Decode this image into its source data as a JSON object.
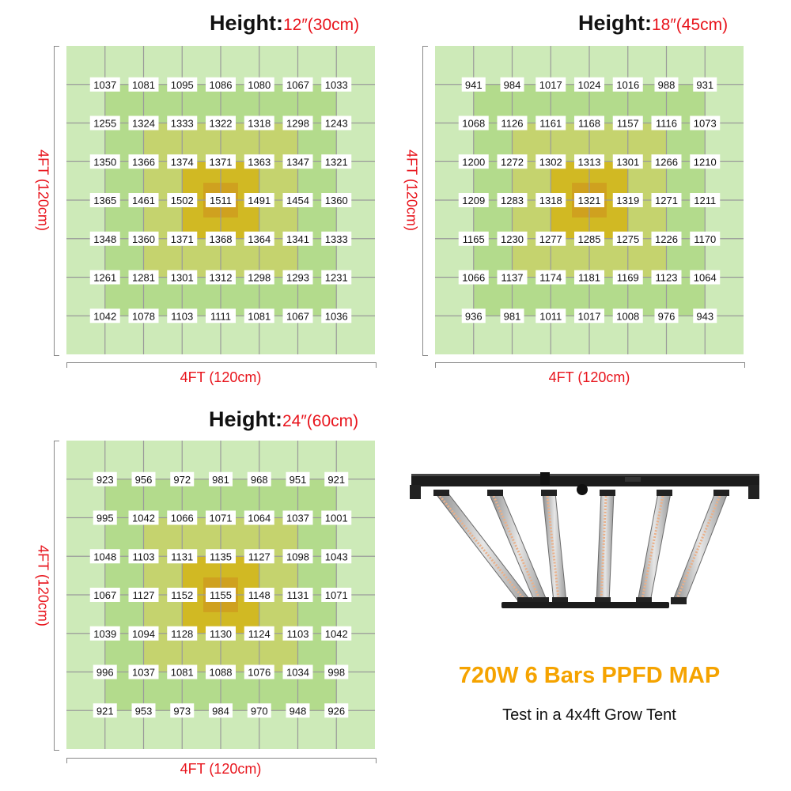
{
  "chart_data": [
    {
      "type": "heatmap",
      "title_label": "Height:",
      "title_value": "12″(30cm)",
      "xlabel": "4FT (120cm)",
      "ylabel": "4FT (120cm)",
      "rows": [
        [
          1037,
          1081,
          1095,
          1086,
          1080,
          1067,
          1033
        ],
        [
          1255,
          1324,
          1333,
          1322,
          1318,
          1298,
          1243
        ],
        [
          1350,
          1366,
          1374,
          1371,
          1363,
          1347,
          1321
        ],
        [
          1365,
          1461,
          1502,
          1511,
          1491,
          1454,
          1360
        ],
        [
          1348,
          1360,
          1371,
          1368,
          1364,
          1341,
          1333
        ],
        [
          1261,
          1281,
          1301,
          1312,
          1298,
          1293,
          1231
        ],
        [
          1042,
          1078,
          1103,
          1111,
          1081,
          1067,
          1036
        ]
      ]
    },
    {
      "type": "heatmap",
      "title_label": "Height:",
      "title_value": "18″(45cm)",
      "xlabel": "4FT (120cm)",
      "ylabel": "4FT (120cm)",
      "rows": [
        [
          941,
          984,
          1017,
          1024,
          1016,
          988,
          931
        ],
        [
          1068,
          1126,
          1161,
          1168,
          1157,
          1116,
          1073
        ],
        [
          1200,
          1272,
          1302,
          1313,
          1301,
          1266,
          1210
        ],
        [
          1209,
          1283,
          1318,
          1321,
          1319,
          1271,
          1211
        ],
        [
          1165,
          1230,
          1277,
          1285,
          1275,
          1226,
          1170
        ],
        [
          1066,
          1137,
          1174,
          1181,
          1169,
          1123,
          1064
        ],
        [
          936,
          981,
          1011,
          1017,
          1008,
          976,
          943
        ]
      ]
    },
    {
      "type": "heatmap",
      "title_label": "Height:",
      "title_value": "24″(60cm)",
      "xlabel": "4FT (120cm)",
      "ylabel": "4FT (120cm)",
      "rows": [
        [
          923,
          956,
          972,
          981,
          968,
          951,
          921
        ],
        [
          995,
          1042,
          1066,
          1071,
          1064,
          1037,
          1001
        ],
        [
          1048,
          1103,
          1131,
          1135,
          1127,
          1098,
          1043
        ],
        [
          1067,
          1127,
          1152,
          1155,
          1148,
          1131,
          1071
        ],
        [
          1039,
          1094,
          1128,
          1130,
          1124,
          1103,
          1042
        ],
        [
          996,
          1037,
          1081,
          1088,
          1076,
          1034,
          998
        ],
        [
          921,
          953,
          973,
          984,
          970,
          948,
          926
        ]
      ]
    }
  ],
  "caption": {
    "title": "720W 6 Bars PPFD MAP",
    "subtitle": "Test in a 4x4ft Grow Tent"
  },
  "colors": {
    "outer_green": "#cdeab8",
    "mid_green": "#b3db8c",
    "olive": "#c5d36e",
    "gold": "#d1b923",
    "center_orange": "#cfa11f",
    "grid_line": "#9a9a9a",
    "red_text": "#e8141c",
    "caption_orange": "#f5a300"
  }
}
